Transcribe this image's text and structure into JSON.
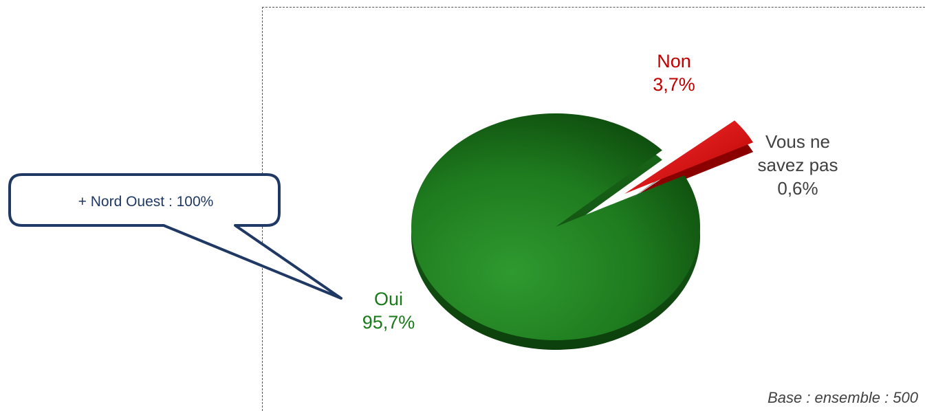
{
  "chart_data": {
    "type": "pie",
    "categories": [
      "Oui",
      "Non",
      "Vous ne savez pas"
    ],
    "values": [
      95.7,
      3.7,
      0.6
    ],
    "value_labels": [
      "95,7%",
      "3,7%",
      "0,6%"
    ],
    "label_lines": {
      "oui": [
        "Oui",
        "95,7%"
      ],
      "non": [
        "Non",
        "3,7%"
      ],
      "vnsp": [
        "Vous ne",
        "savez pas",
        "0,6%"
      ]
    },
    "colors": [
      "#1e7a1e",
      "#d40000",
      "#8c8c8c"
    ],
    "exploded": [
      "Non",
      "Vous ne savez pas"
    ],
    "style": "3d-tilted"
  },
  "callout": {
    "text": "+ Nord Ouest  : 100%",
    "border_color": "#1f3864",
    "text_color": "#1f3864"
  },
  "footer": {
    "base_note": "Base : ensemble : 500"
  }
}
